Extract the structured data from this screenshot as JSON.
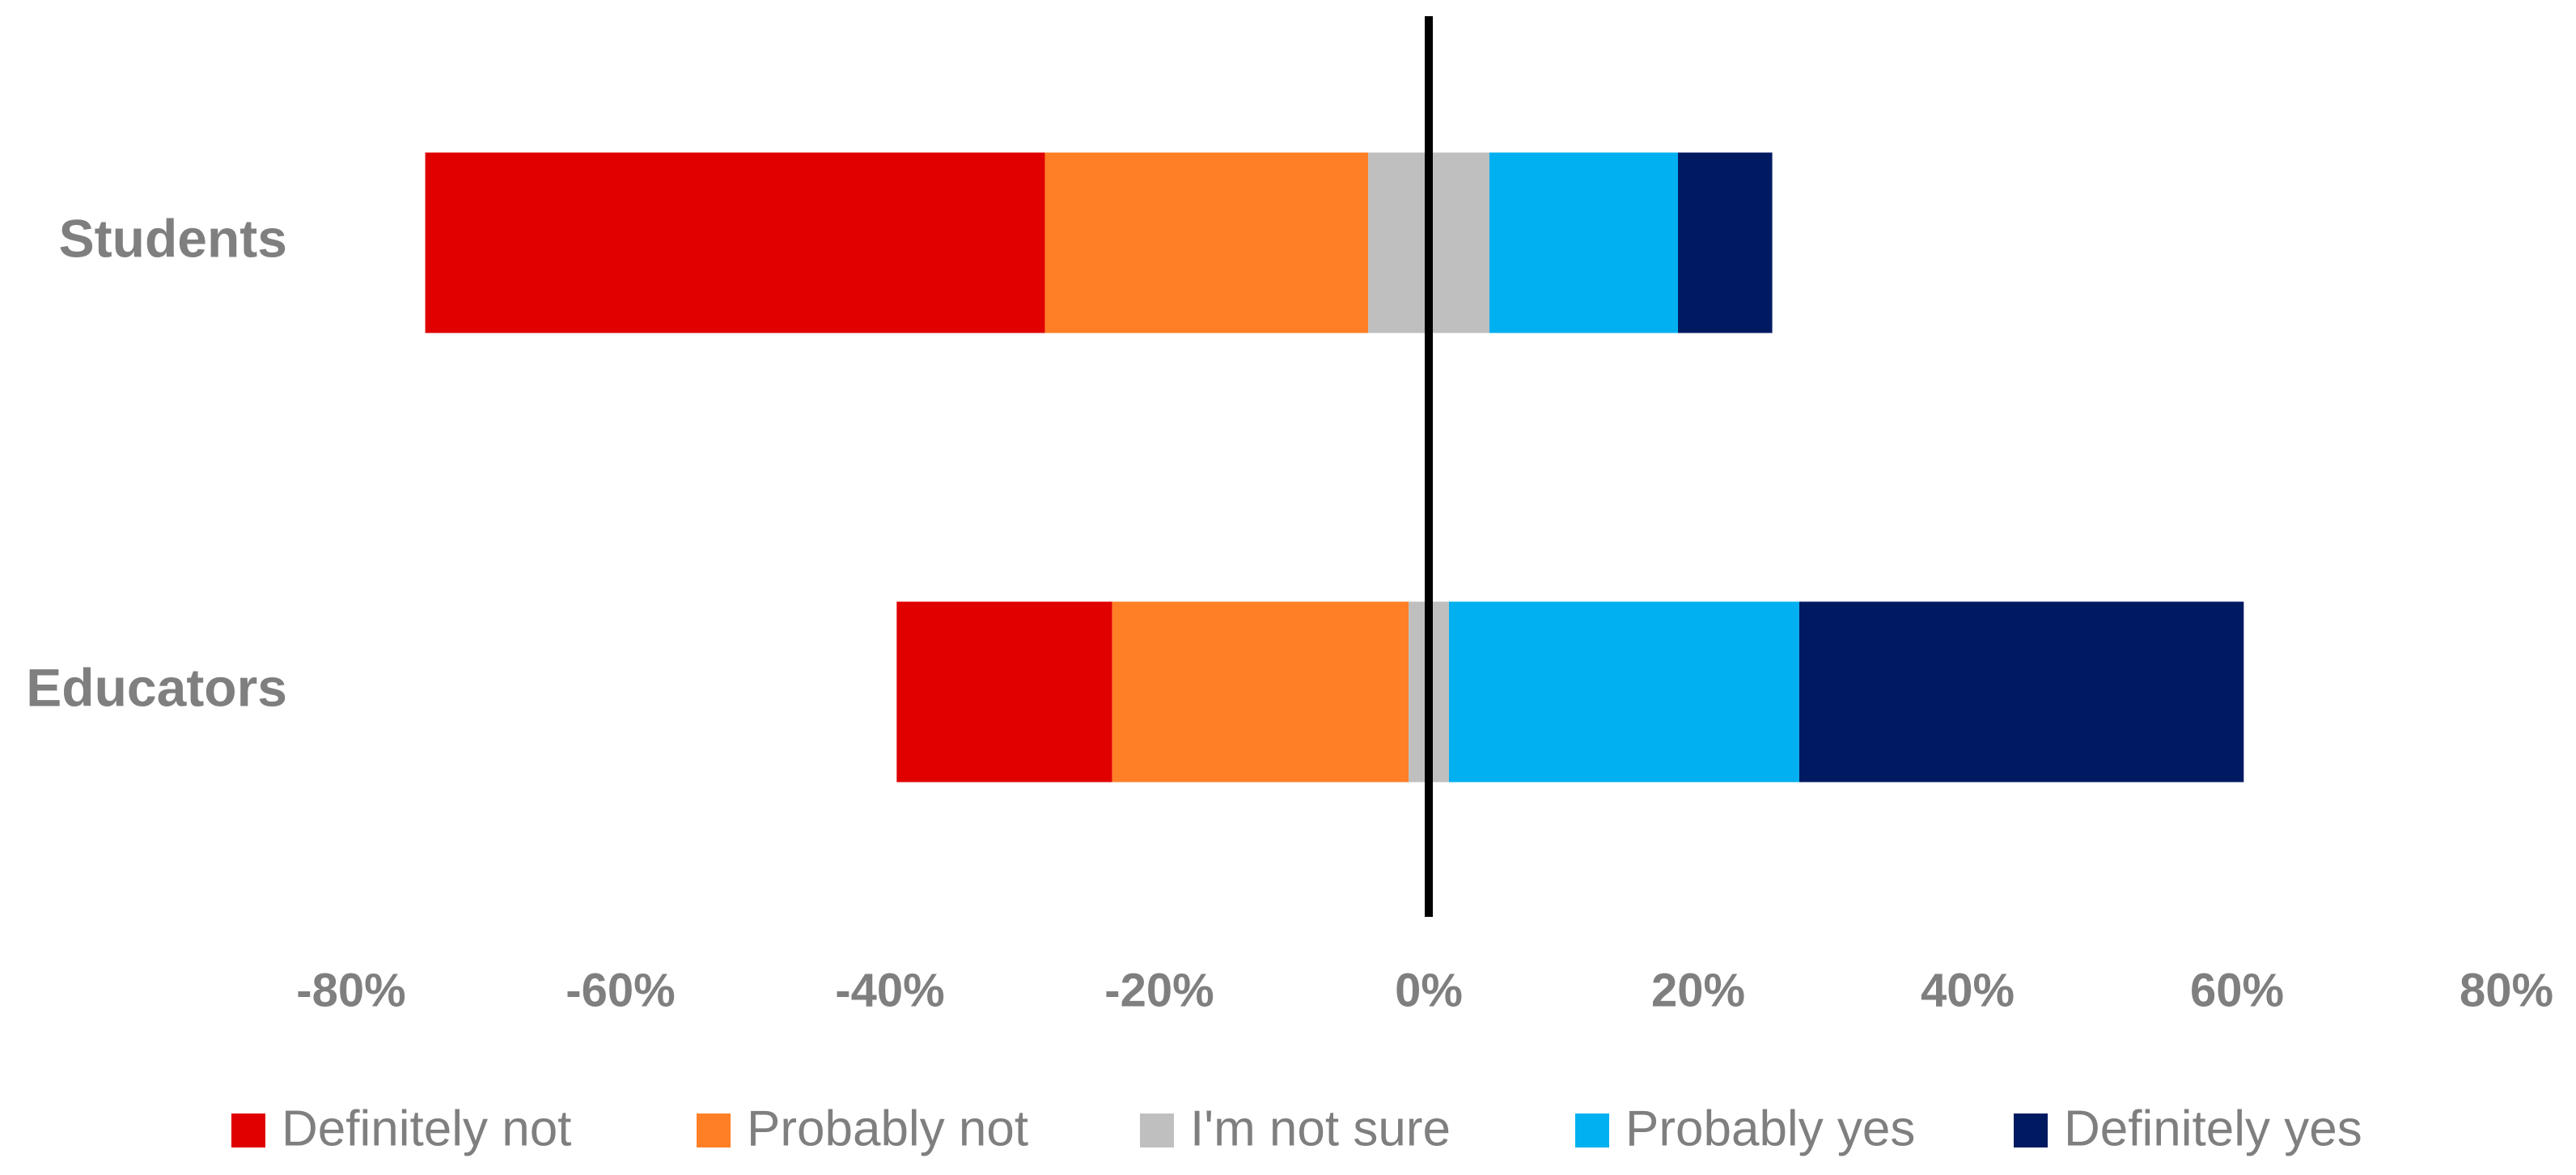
{
  "chart_data": {
    "type": "bar",
    "categories": [
      "Students",
      "Educators"
    ],
    "series": [
      {
        "name": "Definitely not",
        "color": "#e00000",
        "values": [
          46,
          16
        ]
      },
      {
        "name": "Probably not",
        "color": "#ff7f27",
        "values": [
          24,
          22
        ]
      },
      {
        "name": "I'm not sure",
        "color": "#bfbfbf",
        "values": [
          9,
          3
        ]
      },
      {
        "name": "Probably yes",
        "color": "#00b0f0",
        "values": [
          14,
          26
        ]
      },
      {
        "name": "Definitely yes",
        "color": "#001a62",
        "values": [
          7,
          33
        ]
      }
    ],
    "xlim": [
      -80,
      80
    ],
    "xticks": [
      {
        "value": -80,
        "label": "-80%"
      },
      {
        "value": -60,
        "label": "-60%"
      },
      {
        "value": -40,
        "label": "-40%"
      },
      {
        "value": -20,
        "label": "-20%"
      },
      {
        "value": 0,
        "label": "0%"
      },
      {
        "value": 20,
        "label": "20%"
      },
      {
        "value": 40,
        "label": "40%"
      },
      {
        "value": 60,
        "label": "60%"
      },
      {
        "value": 80,
        "label": "80%"
      }
    ],
    "legend": "bottom"
  }
}
